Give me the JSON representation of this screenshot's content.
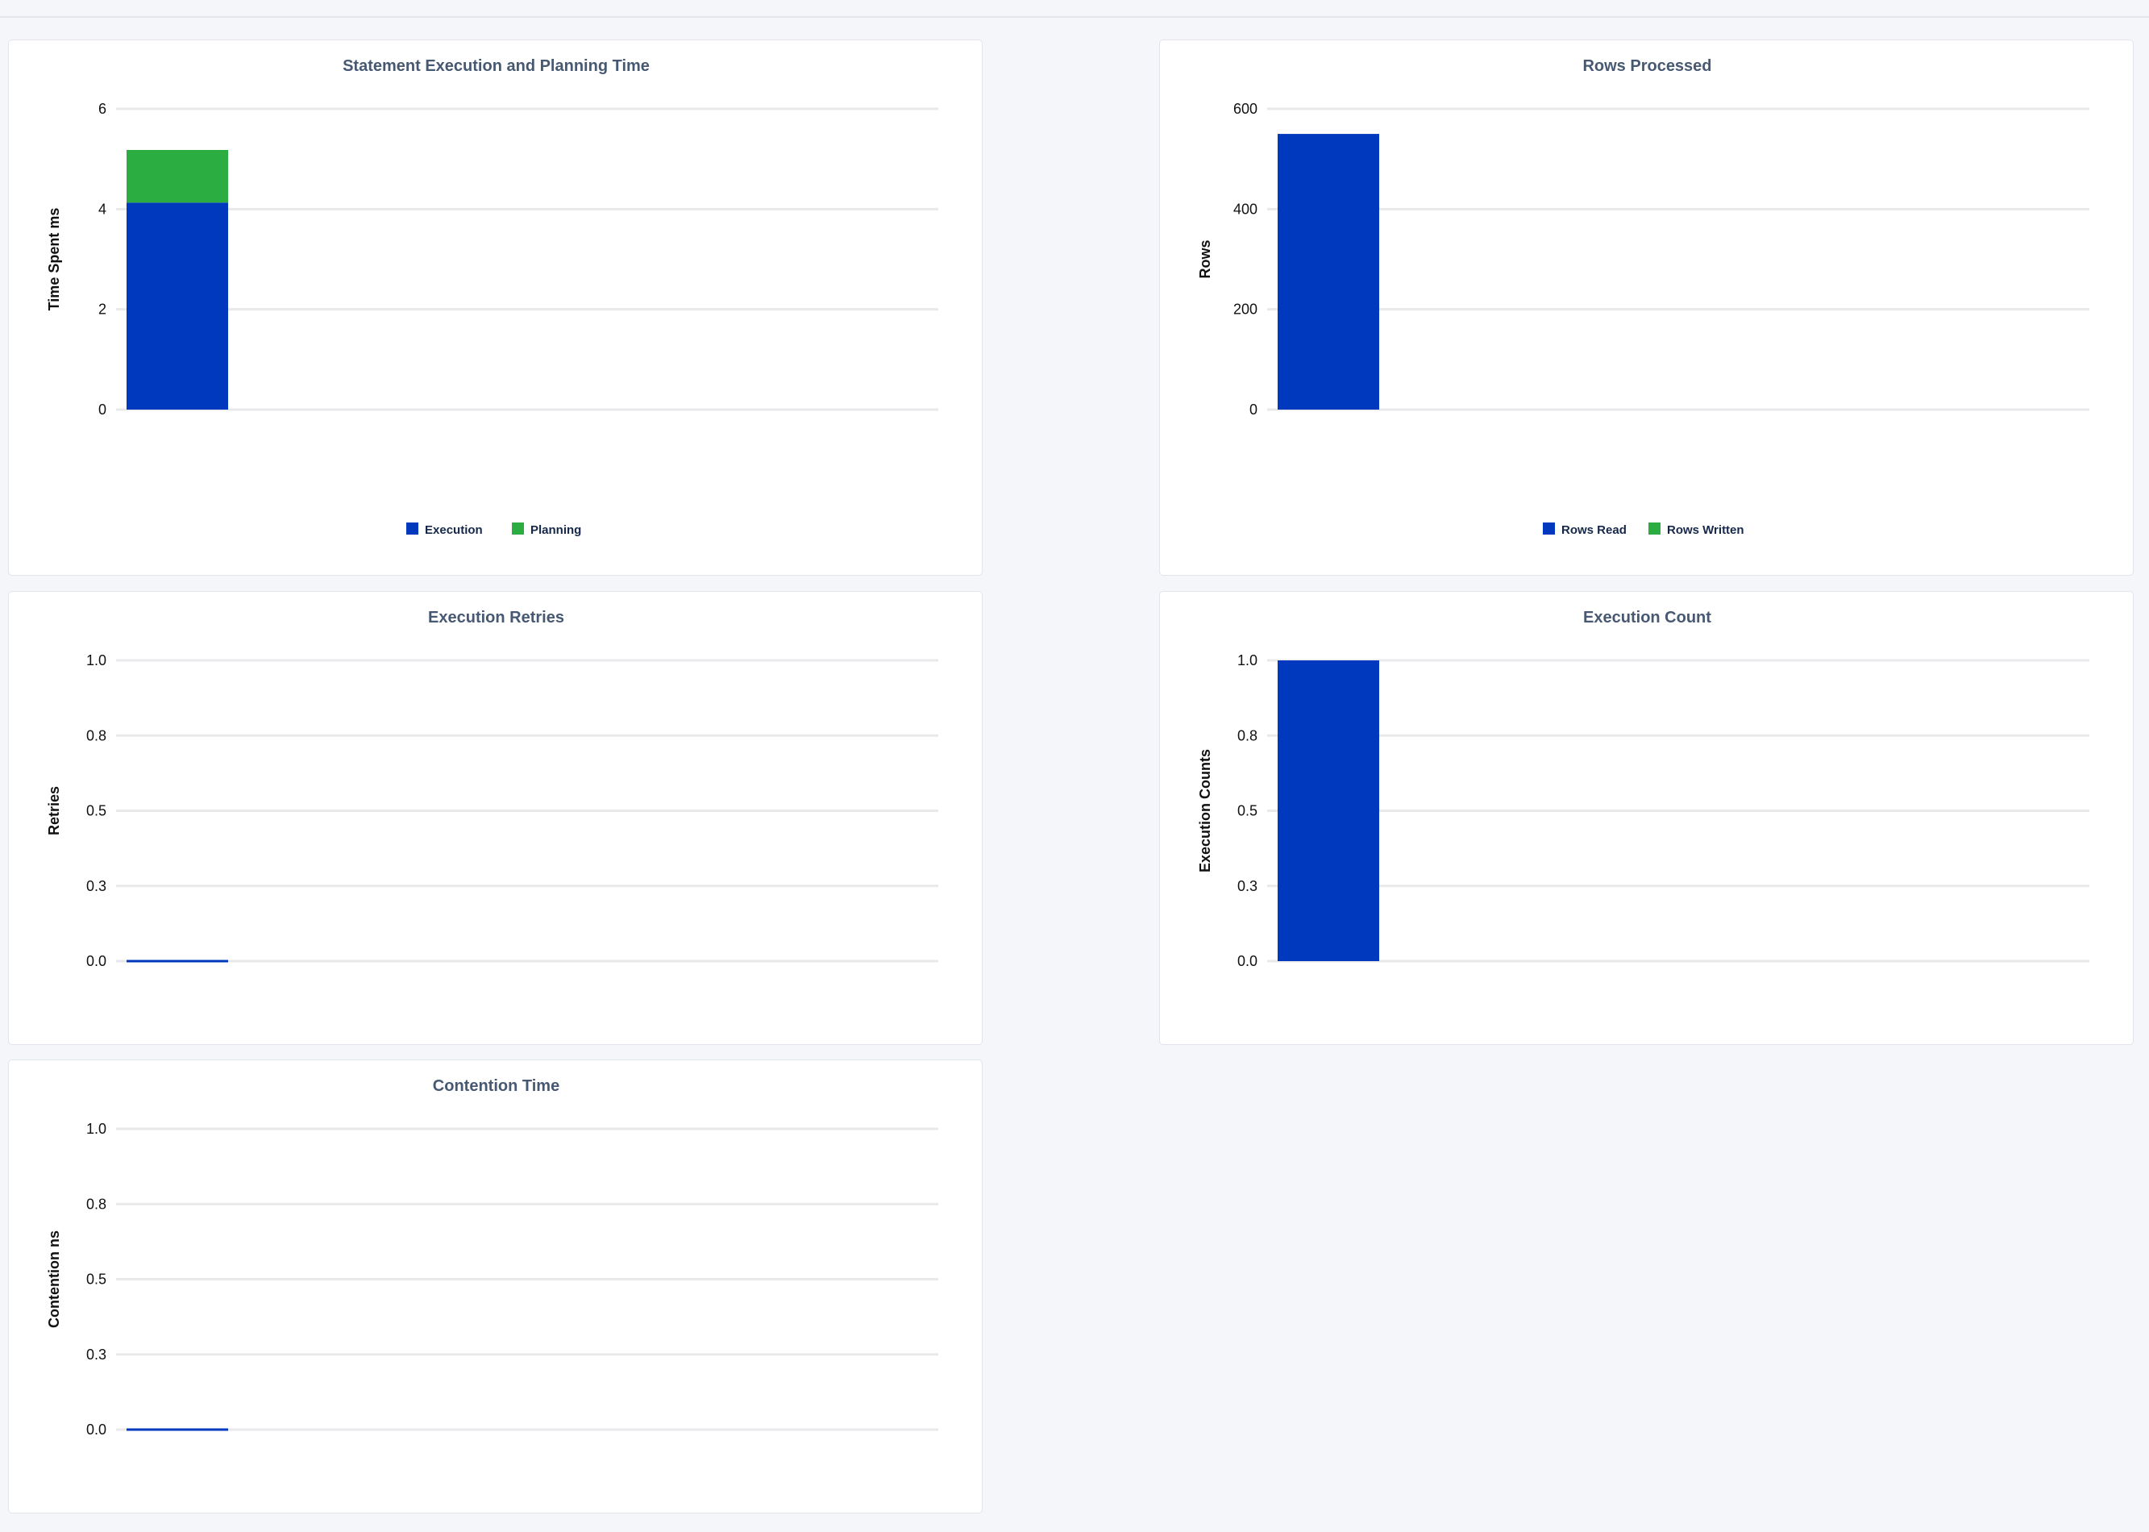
{
  "colors": {
    "execution": "#0039bd",
    "planning": "#2bad42",
    "grid": "#e9e9ec",
    "title": "#475872"
  },
  "chart_data": [
    {
      "type": "bar",
      "stacked": true,
      "title": "Statement Execution and Planning Time",
      "ylabel": "Time Spent ms",
      "ylim": [
        0,
        6
      ],
      "yticks": [
        "0",
        "2",
        "4",
        "6"
      ],
      "categories": [
        ""
      ],
      "series": [
        {
          "name": "Execution",
          "values": [
            4.13
          ],
          "color": "#0039bd"
        },
        {
          "name": "Planning",
          "values": [
            1.05
          ],
          "color": "#2bad42"
        }
      ],
      "legend": "bottom",
      "grid": true
    },
    {
      "type": "bar",
      "stacked": true,
      "title": "Rows Processed",
      "ylabel": "Rows",
      "ylim": [
        0,
        600
      ],
      "yticks": [
        "0",
        "200",
        "400",
        "600"
      ],
      "categories": [
        ""
      ],
      "series": [
        {
          "name": "Rows Read",
          "values": [
            550
          ],
          "color": "#0039bd"
        },
        {
          "name": "Rows Written",
          "values": [
            0
          ],
          "color": "#2bad42"
        }
      ],
      "legend": "bottom",
      "grid": true
    },
    {
      "type": "bar",
      "title": "Execution Retries",
      "ylabel": "Retries",
      "ylim": [
        0,
        1
      ],
      "yticks": [
        "0.0",
        "0.3",
        "0.5",
        "0.8",
        "1.0"
      ],
      "categories": [
        ""
      ],
      "series": [
        {
          "values": [
            0
          ],
          "color": "#0039bd"
        }
      ],
      "grid": true
    },
    {
      "type": "bar",
      "title": "Execution Count",
      "ylabel": "Execution Counts",
      "ylim": [
        0,
        1
      ],
      "yticks": [
        "0.0",
        "0.3",
        "0.5",
        "0.8",
        "1.0"
      ],
      "categories": [
        ""
      ],
      "series": [
        {
          "values": [
            1
          ],
          "color": "#0039bd"
        }
      ],
      "grid": true
    },
    {
      "type": "bar",
      "title": "Contention Time",
      "ylabel": "Contention ns",
      "ylim": [
        0,
        1
      ],
      "yticks": [
        "0.0",
        "0.3",
        "0.5",
        "0.8",
        "1.0"
      ],
      "categories": [
        ""
      ],
      "series": [
        {
          "values": [
            0
          ],
          "color": "#0039bd"
        }
      ],
      "grid": true
    }
  ]
}
